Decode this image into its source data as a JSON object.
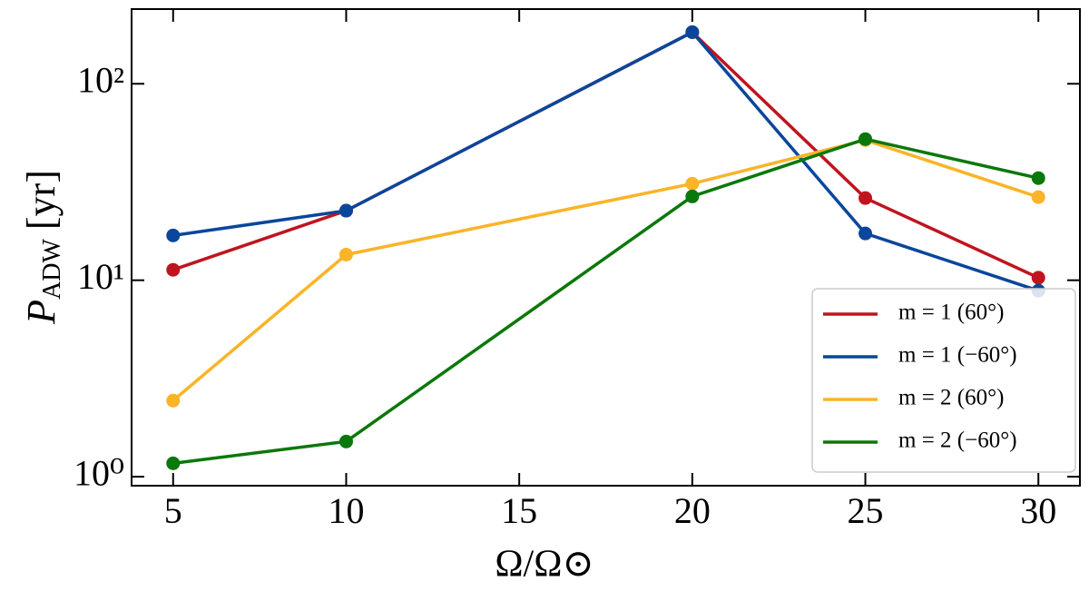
{
  "chart_data": {
    "type": "line",
    "xlabel": "Ω/Ω⊙",
    "ylabel": {
      "symbol": "P",
      "subscript": "ADW",
      "unit": "[yr]"
    },
    "x": [
      5,
      10,
      20,
      25,
      30
    ],
    "xlim": [
      3.8,
      31.2
    ],
    "xticks": [
      5,
      10,
      15,
      20,
      25,
      30
    ],
    "ylim": [
      0.9,
      240
    ],
    "log_y": true,
    "yticks": [
      {
        "value": 1,
        "label": "10⁰"
      },
      {
        "value": 10,
        "label": "10¹"
      },
      {
        "value": 100,
        "label": "10²"
      }
    ],
    "legend_position": "lower right",
    "series": [
      {
        "name": "m = 1 (60°)",
        "color": "#c0141e",
        "values": [
          11.3,
          22.6,
          183,
          26.2,
          10.3
        ]
      },
      {
        "name": "m = 1 (−60°)",
        "color": "#0a469b",
        "values": [
          16.9,
          22.6,
          183,
          17.3,
          8.85
        ]
      },
      {
        "name": "m = 2 (60°)",
        "color": "#fab428",
        "values": [
          2.44,
          13.5,
          31,
          51.7,
          26.5
        ]
      },
      {
        "name": "m = 2 (−60°)",
        "color": "#0a780a",
        "values": [
          1.17,
          1.51,
          26.7,
          52.3,
          33.1
        ]
      }
    ]
  }
}
